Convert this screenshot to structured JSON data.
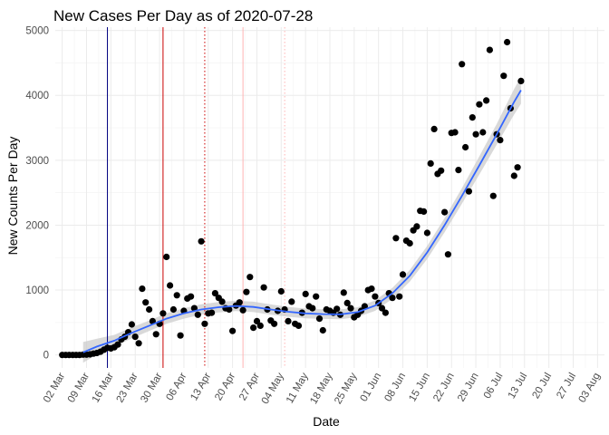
{
  "chart_data": {
    "type": "scatter",
    "title": "New Cases Per Day as of 2020-07-28",
    "xlabel": "Date",
    "ylabel": "New Counts Per Day",
    "x_ticks": [
      "02 Mar",
      "09 Mar",
      "16 Mar",
      "23 Mar",
      "30 Mar",
      "06 Apr",
      "13 Apr",
      "20 Apr",
      "27 Apr",
      "04 May",
      "11 May",
      "18 May",
      "25 May",
      "01 Jun",
      "08 Jun",
      "15 Jun",
      "22 Jun",
      "29 Jun",
      "06 Jul",
      "13 Jul",
      "20 Jul",
      "27 Jul",
      "03 Aug"
    ],
    "y_ticks": [
      0,
      1000,
      2000,
      3000,
      4000,
      5000
    ],
    "xlim_days": [
      -2,
      156
    ],
    "ylim": [
      -200,
      5050
    ],
    "x_origin_date": "2020-03-02",
    "points": [
      [
        0,
        0
      ],
      [
        1,
        0
      ],
      [
        2,
        0
      ],
      [
        3,
        0
      ],
      [
        4,
        0
      ],
      [
        5,
        0
      ],
      [
        6,
        5
      ],
      [
        7,
        5
      ],
      [
        8,
        10
      ],
      [
        9,
        20
      ],
      [
        10,
        30
      ],
      [
        11,
        50
      ],
      [
        12,
        80
      ],
      [
        13,
        110
      ],
      [
        14,
        100
      ],
      [
        15,
        120
      ],
      [
        16,
        160
      ],
      [
        17,
        240
      ],
      [
        18,
        280
      ],
      [
        19,
        350
      ],
      [
        20,
        470
      ],
      [
        21,
        280
      ],
      [
        22,
        180
      ],
      [
        23,
        1020
      ],
      [
        24,
        810
      ],
      [
        25,
        700
      ],
      [
        26,
        520
      ],
      [
        27,
        320
      ],
      [
        28,
        480
      ],
      [
        29,
        640
      ],
      [
        30,
        1510
      ],
      [
        31,
        1070
      ],
      [
        32,
        700
      ],
      [
        33,
        920
      ],
      [
        34,
        300
      ],
      [
        35,
        680
      ],
      [
        36,
        870
      ],
      [
        37,
        900
      ],
      [
        38,
        720
      ],
      [
        39,
        620
      ],
      [
        40,
        1750
      ],
      [
        41,
        480
      ],
      [
        42,
        640
      ],
      [
        43,
        650
      ],
      [
        44,
        950
      ],
      [
        45,
        880
      ],
      [
        46,
        820
      ],
      [
        47,
        720
      ],
      [
        48,
        700
      ],
      [
        49,
        370
      ],
      [
        50,
        760
      ],
      [
        51,
        810
      ],
      [
        52,
        690
      ],
      [
        53,
        970
      ],
      [
        54,
        1200
      ],
      [
        55,
        420
      ],
      [
        56,
        520
      ],
      [
        57,
        450
      ],
      [
        58,
        1040
      ],
      [
        59,
        700
      ],
      [
        60,
        530
      ],
      [
        61,
        480
      ],
      [
        62,
        680
      ],
      [
        63,
        980
      ],
      [
        64,
        700
      ],
      [
        65,
        520
      ],
      [
        66,
        820
      ],
      [
        67,
        480
      ],
      [
        68,
        450
      ],
      [
        69,
        650
      ],
      [
        70,
        940
      ],
      [
        71,
        750
      ],
      [
        72,
        720
      ],
      [
        73,
        900
      ],
      [
        74,
        560
      ],
      [
        75,
        380
      ],
      [
        76,
        700
      ],
      [
        77,
        680
      ],
      [
        78,
        650
      ],
      [
        79,
        710
      ],
      [
        80,
        620
      ],
      [
        81,
        960
      ],
      [
        82,
        800
      ],
      [
        83,
        720
      ],
      [
        84,
        580
      ],
      [
        85,
        620
      ],
      [
        86,
        680
      ],
      [
        87,
        750
      ],
      [
        88,
        1000
      ],
      [
        89,
        1020
      ],
      [
        90,
        900
      ],
      [
        91,
        800
      ],
      [
        92,
        720
      ],
      [
        93,
        650
      ],
      [
        94,
        950
      ],
      [
        95,
        880
      ],
      [
        96,
        1800
      ],
      [
        97,
        900
      ],
      [
        98,
        1240
      ],
      [
        99,
        1760
      ],
      [
        100,
        1720
      ],
      [
        101,
        1920
      ],
      [
        102,
        1980
      ],
      [
        103,
        2220
      ],
      [
        104,
        2210
      ],
      [
        105,
        1880
      ],
      [
        106,
        2950
      ],
      [
        107,
        3480
      ],
      [
        108,
        2790
      ],
      [
        109,
        2840
      ],
      [
        110,
        2200
      ],
      [
        111,
        1550
      ],
      [
        112,
        3420
      ],
      [
        113,
        3430
      ],
      [
        114,
        2850
      ],
      [
        115,
        4480
      ],
      [
        116,
        3200
      ],
      [
        117,
        2520
      ],
      [
        118,
        3660
      ],
      [
        119,
        3400
      ],
      [
        120,
        3860
      ],
      [
        121,
        3430
      ],
      [
        122,
        3920
      ],
      [
        123,
        4700
      ],
      [
        124,
        2450
      ],
      [
        125,
        3400
      ],
      [
        126,
        3310
      ],
      [
        127,
        4300
      ],
      [
        128,
        4820
      ],
      [
        129,
        3800
      ],
      [
        130,
        2760
      ],
      [
        131,
        2890
      ],
      [
        132,
        4220
      ]
    ],
    "trend": [
      [
        6,
        40
      ],
      [
        10,
        130
      ],
      [
        15,
        220
      ],
      [
        20,
        340
      ],
      [
        25,
        450
      ],
      [
        30,
        560
      ],
      [
        35,
        640
      ],
      [
        40,
        700
      ],
      [
        45,
        735
      ],
      [
        50,
        755
      ],
      [
        55,
        740
      ],
      [
        60,
        700
      ],
      [
        65,
        665
      ],
      [
        70,
        640
      ],
      [
        75,
        630
      ],
      [
        80,
        625
      ],
      [
        85,
        660
      ],
      [
        90,
        760
      ],
      [
        95,
        950
      ],
      [
        100,
        1220
      ],
      [
        105,
        1580
      ],
      [
        110,
        2000
      ],
      [
        115,
        2450
      ],
      [
        120,
        2920
      ],
      [
        125,
        3400
      ],
      [
        130,
        3900
      ],
      [
        132,
        4080
      ]
    ],
    "trend_band_halfwidth": [
      [
        6,
        160
      ],
      [
        10,
        120
      ],
      [
        15,
        90
      ],
      [
        25,
        80
      ],
      [
        40,
        80
      ],
      [
        55,
        80
      ],
      [
        70,
        75
      ],
      [
        85,
        75
      ],
      [
        100,
        90
      ],
      [
        115,
        120
      ],
      [
        125,
        160
      ],
      [
        132,
        210
      ]
    ],
    "vlines": [
      {
        "day": 13,
        "color": "#000080",
        "style": "solid"
      },
      {
        "day": 29,
        "color": "#cc0000",
        "style": "solid"
      },
      {
        "day": 41,
        "color": "#cc0000",
        "style": "dotted"
      },
      {
        "day": 52,
        "color": "#ffb3b3",
        "style": "solid"
      },
      {
        "day": 64,
        "color": "#ffb3b3",
        "style": "dotted"
      }
    ],
    "colors": {
      "points": "#000000",
      "trend": "#3366ff",
      "band": "#cccccc"
    }
  }
}
